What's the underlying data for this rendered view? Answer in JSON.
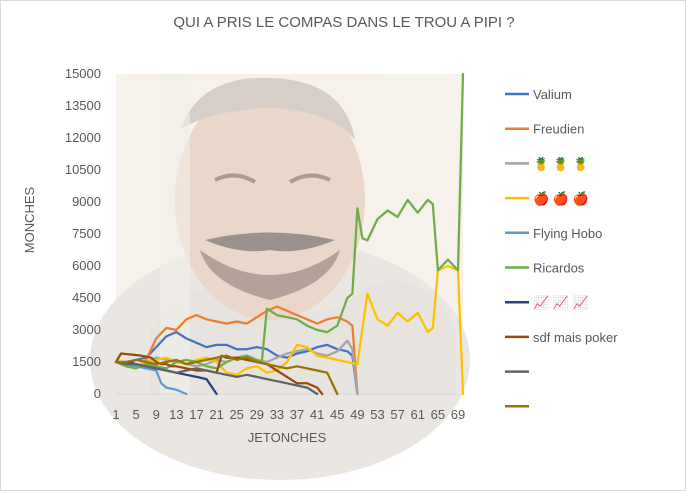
{
  "chart_data": {
    "type": "line",
    "title": "QUI A PRIS LE COMPAS DANS LE TROU A PIPI ?",
    "xlabel": "JETONCHES",
    "ylabel": "MONCHES",
    "ylim": [
      0,
      15000
    ],
    "yticks": [
      0,
      1500,
      3000,
      4500,
      6000,
      7500,
      9000,
      10500,
      12000,
      13500,
      15000
    ],
    "xlim": [
      1,
      70
    ],
    "xticks": [
      1,
      5,
      9,
      13,
      17,
      21,
      25,
      29,
      33,
      37,
      41,
      45,
      49,
      53,
      57,
      61,
      65,
      69
    ],
    "grid": false,
    "legend_position": "right",
    "background_image": "laughing-man-photo",
    "series": [
      {
        "name": "Valium",
        "color": "#4472C4",
        "x": [
          1,
          3,
          5,
          7,
          9,
          11,
          13,
          15,
          17,
          19,
          21,
          23,
          25,
          27,
          29,
          31,
          33,
          35,
          37,
          39,
          41,
          43,
          45,
          47,
          48,
          49
        ],
        "values": [
          1500,
          1400,
          1600,
          1700,
          2200,
          2700,
          2900,
          2600,
          2400,
          2200,
          2300,
          2300,
          2100,
          2100,
          2200,
          2100,
          1800,
          1700,
          1900,
          2000,
          2200,
          2300,
          2100,
          2000,
          1800,
          0
        ]
      },
      {
        "name": "Freudien",
        "color": "#ED7D31",
        "x": [
          1,
          3,
          5,
          7,
          9,
          11,
          13,
          15,
          17,
          19,
          21,
          23,
          25,
          27,
          29,
          31,
          33,
          35,
          37,
          39,
          41,
          43,
          45,
          47,
          48,
          49
        ],
        "values": [
          1500,
          1300,
          1200,
          1600,
          2600,
          3100,
          3000,
          3500,
          3700,
          3500,
          3400,
          3300,
          3400,
          3300,
          3600,
          3900,
          4100,
          3900,
          3700,
          3500,
          3300,
          3500,
          3600,
          3400,
          3200,
          0
        ]
      },
      {
        "name": "🍍 🍍 🍍",
        "color": "#A5A5A5",
        "x": [
          1,
          3,
          5,
          7,
          9,
          11,
          13,
          15,
          17,
          19,
          21,
          23,
          25,
          27,
          29,
          31,
          33,
          35,
          37,
          39,
          41,
          43,
          45,
          47,
          48,
          49
        ],
        "values": [
          1500,
          1400,
          1300,
          1500,
          1700,
          1600,
          1500,
          1400,
          1300,
          1400,
          1600,
          1500,
          1700,
          1800,
          1600,
          1500,
          1700,
          1900,
          2000,
          2100,
          1900,
          1800,
          2000,
          2500,
          2100,
          0
        ]
      },
      {
        "name": "🍎 🍎 🍎",
        "color": "#FFC000",
        "x": [
          1,
          3,
          5,
          7,
          9,
          11,
          13,
          15,
          17,
          19,
          21,
          23,
          25,
          27,
          29,
          31,
          33,
          35,
          37,
          39,
          41,
          43,
          45,
          47,
          49,
          51,
          53,
          55,
          57,
          59,
          61,
          63,
          64,
          65,
          67,
          69,
          70
        ],
        "values": [
          1500,
          1400,
          1300,
          1500,
          1600,
          1700,
          1500,
          1400,
          1600,
          1700,
          1500,
          1000,
          900,
          1200,
          1300,
          1000,
          1100,
          1500,
          2300,
          2200,
          1800,
          1700,
          1600,
          1500,
          1400,
          4700,
          3500,
          3200,
          3800,
          3400,
          3800,
          2900,
          3100,
          5800,
          6000,
          5800,
          0
        ]
      },
      {
        "name": "Flying Hobo",
        "color": "#5B9BD5",
        "x": [
          1,
          3,
          5,
          7,
          9,
          10,
          11,
          13,
          14,
          15
        ],
        "values": [
          1500,
          1400,
          1300,
          1200,
          1100,
          500,
          300,
          200,
          100,
          0
        ]
      },
      {
        "name": "Ricardos",
        "color": "#70AD47",
        "x": [
          1,
          3,
          5,
          7,
          9,
          11,
          13,
          15,
          17,
          19,
          21,
          23,
          25,
          27,
          29,
          30,
          31,
          33,
          35,
          37,
          39,
          41,
          43,
          45,
          47,
          48,
          49,
          50,
          51,
          53,
          55,
          57,
          59,
          61,
          63,
          64,
          65,
          67,
          69,
          70
        ],
        "values": [
          1500,
          1300,
          1200,
          1400,
          1300,
          1200,
          1500,
          1600,
          1500,
          1300,
          1200,
          1500,
          1700,
          1800,
          1600,
          1500,
          4000,
          3700,
          3600,
          3500,
          3200,
          3000,
          2900,
          3200,
          4500,
          4700,
          8700,
          7300,
          7200,
          8200,
          8600,
          8300,
          9100,
          8500,
          9100,
          8900,
          5800,
          6300,
          5800,
          15000
        ]
      },
      {
        "name": "📈 📈 📈",
        "color": "#264478",
        "x": [
          1,
          3,
          5,
          7,
          9,
          11,
          13,
          15,
          17,
          19,
          21
        ],
        "values": [
          1500,
          1500,
          1400,
          1300,
          1200,
          1100,
          1000,
          900,
          800,
          700,
          0
        ]
      },
      {
        "name": "sdf mais poker",
        "color": "#9E480E",
        "x": [
          1,
          2,
          4,
          6,
          8,
          9,
          10,
          11,
          12,
          13,
          15,
          17,
          19,
          21,
          22,
          23,
          25,
          27,
          29,
          31,
          33,
          35,
          37,
          39,
          41,
          42
        ],
        "values": [
          1500,
          1900,
          1850,
          1800,
          1700,
          1500,
          1400,
          1400,
          1300,
          1300,
          1200,
          1100,
          1100,
          1000,
          1800,
          1700,
          1700,
          1600,
          1500,
          1400,
          1100,
          800,
          500,
          500,
          300,
          0
        ]
      },
      {
        "name": "",
        "color": "#636363",
        "x": [
          1,
          3,
          5,
          7,
          9,
          11,
          13,
          15,
          17,
          19,
          21,
          23,
          25,
          27,
          29,
          31,
          33,
          35,
          37,
          39,
          41
        ],
        "values": [
          1500,
          1400,
          1400,
          1300,
          1200,
          1100,
          1000,
          1100,
          1200,
          1100,
          1000,
          900,
          800,
          900,
          800,
          700,
          600,
          500,
          400,
          300,
          0
        ]
      },
      {
        "name": "",
        "color": "#997300",
        "x": [
          1,
          3,
          5,
          7,
          9,
          11,
          13,
          15,
          17,
          19,
          21,
          23,
          25,
          27,
          29,
          31,
          33,
          35,
          37,
          39,
          41,
          43,
          45
        ],
        "values": [
          1500,
          1500,
          1600,
          1500,
          1400,
          1500,
          1600,
          1400,
          1500,
          1600,
          1700,
          1800,
          1600,
          1700,
          1500,
          1400,
          1300,
          1200,
          1300,
          1200,
          1100,
          1000,
          0
        ]
      }
    ]
  }
}
